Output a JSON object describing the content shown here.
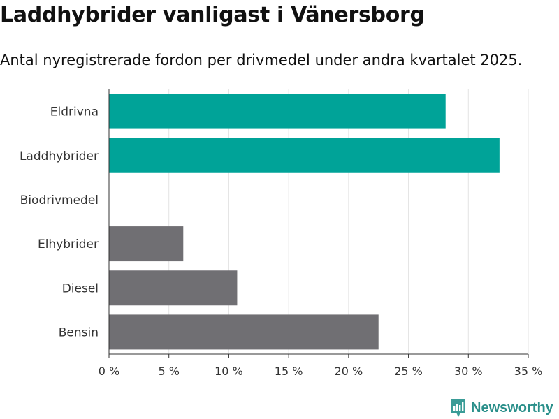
{
  "header": {
    "title": "Laddhybrider vanligast i Vänersborg",
    "subtitle": "Antal nyregistrerade fordon per drivmedel under andra kvartalet 2025."
  },
  "brand": {
    "name": "Newsworthy",
    "icon": "newsworthy-logo-icon"
  },
  "chart_data": {
    "type": "bar",
    "orientation": "horizontal",
    "categories": [
      "Eldrivna",
      "Laddhybrider",
      "Biodrivmedel",
      "Elhybrider",
      "Diesel",
      "Bensin"
    ],
    "values": [
      28.1,
      32.6,
      0,
      6.2,
      10.7,
      22.5
    ],
    "colors": [
      "#00a398",
      "#00a398",
      "#00a398",
      "#706f73",
      "#706f73",
      "#706f73"
    ],
    "xlim": [
      0,
      35
    ],
    "xticks": [
      0,
      5,
      10,
      15,
      20,
      25,
      30,
      35
    ],
    "xtick_labels": [
      "0 %",
      "5 %",
      "10 %",
      "15 %",
      "20 %",
      "25 %",
      "30 %",
      "35 %"
    ],
    "grid": true
  }
}
